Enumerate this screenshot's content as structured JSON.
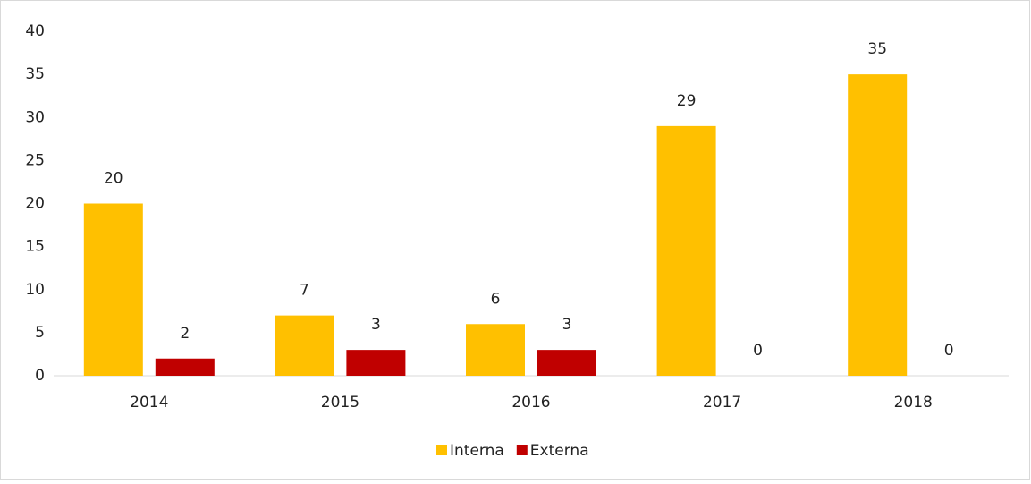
{
  "chart_data": {
    "type": "bar",
    "categories": [
      "2014",
      "2015",
      "2016",
      "2017",
      "2018"
    ],
    "series": [
      {
        "name": "Interna",
        "color": "#ffc000",
        "values": [
          20,
          7,
          6,
          29,
          35
        ]
      },
      {
        "name": "Externa",
        "color": "#c00000",
        "values": [
          2,
          3,
          3,
          0,
          0
        ]
      }
    ],
    "ylim": [
      0,
      40
    ],
    "yticks": [
      0,
      5,
      10,
      15,
      20,
      25,
      30,
      35,
      40
    ],
    "grid": false,
    "legend": "bottom"
  }
}
